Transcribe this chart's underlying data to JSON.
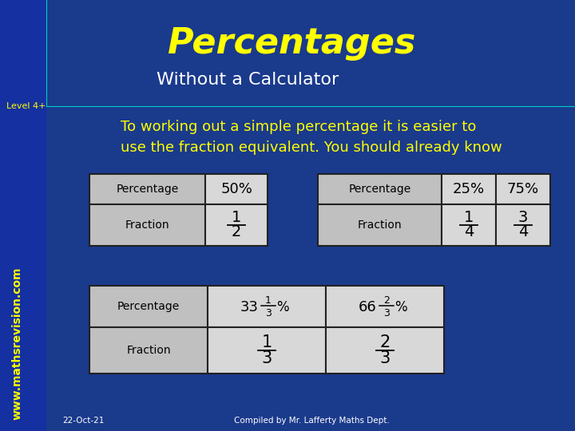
{
  "bg_color": "#1a3a8c",
  "title": "Percentages",
  "subtitle": "Without a Calculator",
  "title_color": "#ffff00",
  "subtitle_color": "#ffffff",
  "level_text": "Level 4+",
  "level_color": "#ffff00",
  "body_text_color": "#ffff00",
  "body_text": "To working out a simple percentage it is easier to\nuse the fraction equivalent. You should already know",
  "watermark_text": "www.mathsrevision.com",
  "watermark_color": "#ffff00",
  "footer_left": "22-Oct-21",
  "footer_right": "Compiled by Mr. Lafferty Maths Dept.",
  "footer_color": "#ffffff",
  "header_bg": "#c0c0c0",
  "cell_bg": "#d8d8d8",
  "table_border_color": "#222222",
  "table_text_color": "#000000"
}
